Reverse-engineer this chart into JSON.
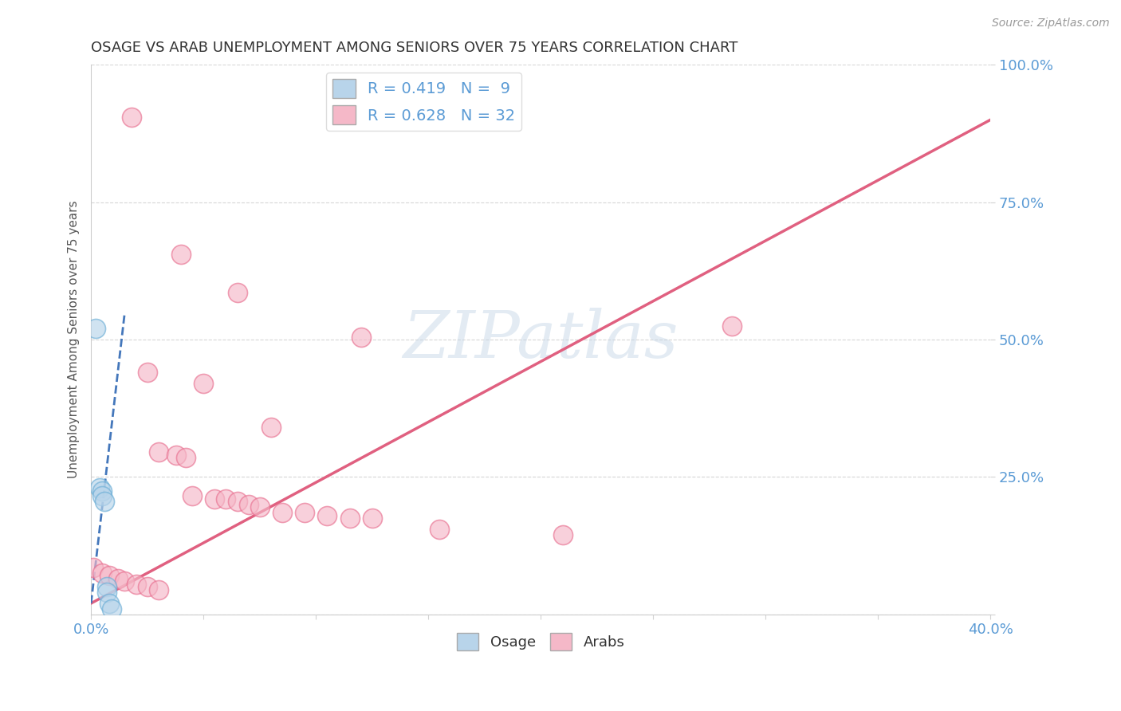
{
  "title": "OSAGE VS ARAB UNEMPLOYMENT AMONG SENIORS OVER 75 YEARS CORRELATION CHART",
  "source": "Source: ZipAtlas.com",
  "ylabel": "Unemployment Among Seniors over 75 years",
  "xlim": [
    0.0,
    0.4
  ],
  "ylim": [
    0.0,
    1.0
  ],
  "legend_R_osage": "R = 0.419",
  "legend_N_osage": "N =  9",
  "legend_R_arab": "R = 0.628",
  "legend_N_arab": "N = 32",
  "osage_color": "#b8d4ea",
  "arab_color": "#f5b8c8",
  "osage_edge_color": "#6baed6",
  "arab_edge_color": "#e87090",
  "osage_line_color": "#4477bb",
  "arab_line_color": "#e06080",
  "watermark_color": "#c8d8e8",
  "tick_color": "#5b9bd5",
  "title_color": "#333333",
  "osage_points": [
    [
      0.002,
      0.52
    ],
    [
      0.004,
      0.23
    ],
    [
      0.005,
      0.225
    ],
    [
      0.005,
      0.215
    ],
    [
      0.006,
      0.205
    ],
    [
      0.007,
      0.05
    ],
    [
      0.007,
      0.04
    ],
    [
      0.008,
      0.02
    ],
    [
      0.009,
      0.01
    ]
  ],
  "arab_points": [
    [
      0.018,
      0.905
    ],
    [
      0.04,
      0.655
    ],
    [
      0.065,
      0.585
    ],
    [
      0.025,
      0.44
    ],
    [
      0.05,
      0.42
    ],
    [
      0.12,
      0.505
    ],
    [
      0.285,
      0.525
    ],
    [
      0.08,
      0.34
    ],
    [
      0.03,
      0.295
    ],
    [
      0.038,
      0.29
    ],
    [
      0.042,
      0.285
    ],
    [
      0.045,
      0.215
    ],
    [
      0.055,
      0.21
    ],
    [
      0.06,
      0.21
    ],
    [
      0.065,
      0.205
    ],
    [
      0.07,
      0.2
    ],
    [
      0.075,
      0.195
    ],
    [
      0.085,
      0.185
    ],
    [
      0.095,
      0.185
    ],
    [
      0.105,
      0.18
    ],
    [
      0.115,
      0.175
    ],
    [
      0.125,
      0.175
    ],
    [
      0.155,
      0.155
    ],
    [
      0.21,
      0.145
    ],
    [
      0.001,
      0.085
    ],
    [
      0.005,
      0.075
    ],
    [
      0.008,
      0.07
    ],
    [
      0.012,
      0.065
    ],
    [
      0.015,
      0.06
    ],
    [
      0.02,
      0.055
    ],
    [
      0.025,
      0.05
    ],
    [
      0.03,
      0.045
    ]
  ],
  "arab_line_x": [
    0.0,
    0.4
  ],
  "arab_line_y": [
    0.02,
    0.9
  ],
  "osage_line_x": [
    0.0,
    0.015
  ],
  "osage_line_y": [
    0.02,
    0.55
  ]
}
